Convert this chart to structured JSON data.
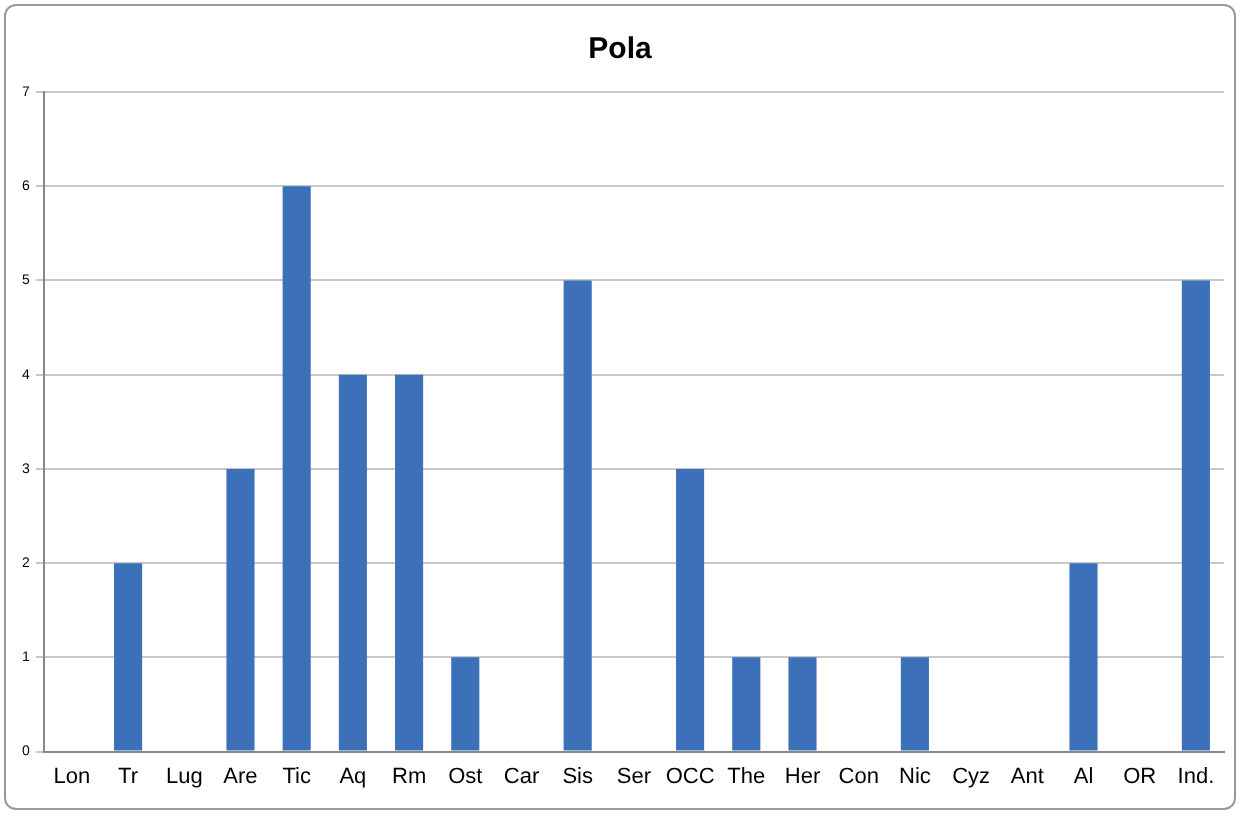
{
  "chart_data": {
    "type": "bar",
    "title": "Pola",
    "categories": [
      "Lon",
      "Tr",
      "Lug",
      "Are",
      "Tic",
      "Aq",
      "Rm",
      "Ost",
      "Car",
      "Sis",
      "Ser",
      "OCC",
      "The",
      "Her",
      "Con",
      "Nic",
      "Cyz",
      "Ant",
      "Al",
      "OR",
      "Ind."
    ],
    "values": [
      0,
      2,
      0,
      3,
      6,
      4,
      4,
      1,
      0,
      5,
      0,
      3,
      1,
      1,
      0,
      1,
      0,
      0,
      2,
      0,
      5
    ],
    "color": "#3c70b8",
    "ylim": [
      0,
      7
    ],
    "yticks": [
      0,
      1,
      2,
      3,
      4,
      5,
      6,
      7
    ],
    "grid": "y",
    "legend": false
  }
}
